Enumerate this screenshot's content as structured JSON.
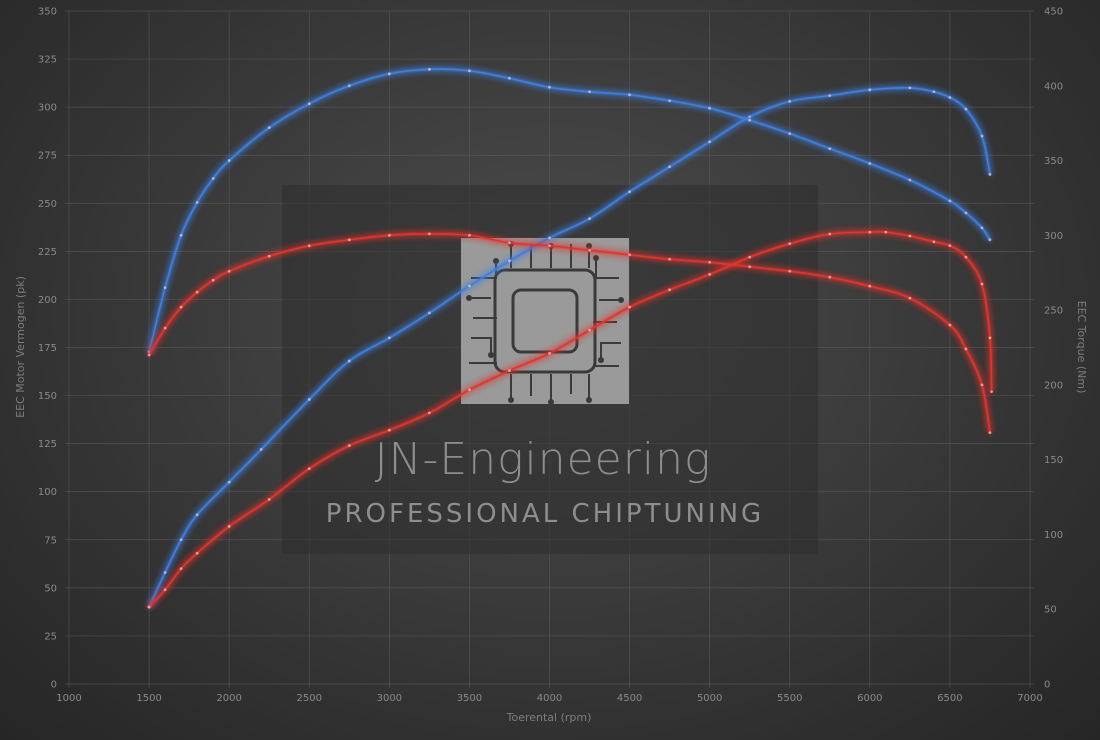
{
  "watermark": {
    "title": "JN-Engineering",
    "subtitle": "Professional chiptuning"
  },
  "chart_data": {
    "type": "line",
    "title": "",
    "xlabel": "Toerental (rpm)",
    "ylabel_left": "EEC Motor Vermogen (pk)",
    "ylabel_right": "EEC Torque (Nm)",
    "xlim": [
      1000,
      7000
    ],
    "xticks": [
      1000,
      1500,
      2000,
      2500,
      3000,
      3500,
      4000,
      4500,
      5000,
      5500,
      6000,
      6500,
      7000
    ],
    "ylim_left": [
      0,
      350
    ],
    "yticks_left": [
      0,
      25,
      50,
      75,
      100,
      125,
      150,
      175,
      200,
      225,
      250,
      275,
      300,
      325,
      350
    ],
    "ylim_right": [
      0,
      450
    ],
    "yticks_right": [
      0,
      50,
      100,
      150,
      200,
      250,
      300,
      350,
      400,
      450
    ],
    "grid": true,
    "series": [
      {
        "axis": "left",
        "color": "#3f7fe0",
        "points": [
          [
            1500,
            40
          ],
          [
            1600,
            58
          ],
          [
            1700,
            75
          ],
          [
            1800,
            88
          ],
          [
            2000,
            105
          ],
          [
            2200,
            122
          ],
          [
            2500,
            148
          ],
          [
            2750,
            168
          ],
          [
            3000,
            180
          ],
          [
            3250,
            193
          ],
          [
            3500,
            207
          ],
          [
            3750,
            220
          ],
          [
            4000,
            232
          ],
          [
            4250,
            242
          ],
          [
            4500,
            256
          ],
          [
            4750,
            269
          ],
          [
            5000,
            282
          ],
          [
            5250,
            295
          ],
          [
            5500,
            303
          ],
          [
            5750,
            306
          ],
          [
            6000,
            309
          ],
          [
            6250,
            310
          ],
          [
            6400,
            308
          ],
          [
            6500,
            305
          ],
          [
            6600,
            299
          ],
          [
            6700,
            285
          ],
          [
            6750,
            265
          ]
        ]
      },
      {
        "axis": "right",
        "color": "#3f7fe0",
        "points": [
          [
            1500,
            222
          ],
          [
            1600,
            265
          ],
          [
            1700,
            300
          ],
          [
            1800,
            322
          ],
          [
            1900,
            338
          ],
          [
            2000,
            350
          ],
          [
            2250,
            372
          ],
          [
            2500,
            388
          ],
          [
            2750,
            400
          ],
          [
            3000,
            408
          ],
          [
            3250,
            411
          ],
          [
            3500,
            410
          ],
          [
            3750,
            405
          ],
          [
            4000,
            399
          ],
          [
            4250,
            396
          ],
          [
            4500,
            394
          ],
          [
            4750,
            390
          ],
          [
            5000,
            385
          ],
          [
            5250,
            377
          ],
          [
            5500,
            368
          ],
          [
            5750,
            358
          ],
          [
            6000,
            348
          ],
          [
            6250,
            337
          ],
          [
            6500,
            323
          ],
          [
            6600,
            315
          ],
          [
            6700,
            305
          ],
          [
            6750,
            297
          ]
        ]
      },
      {
        "axis": "left",
        "color": "#e2342f",
        "points": [
          [
            1500,
            40
          ],
          [
            1600,
            49
          ],
          [
            1700,
            60
          ],
          [
            1800,
            68
          ],
          [
            2000,
            82
          ],
          [
            2250,
            96
          ],
          [
            2500,
            112
          ],
          [
            2750,
            124
          ],
          [
            3000,
            132
          ],
          [
            3250,
            141
          ],
          [
            3500,
            153
          ],
          [
            3750,
            163
          ],
          [
            4000,
            172
          ],
          [
            4250,
            184
          ],
          [
            4500,
            196
          ],
          [
            4750,
            205
          ],
          [
            5000,
            213
          ],
          [
            5250,
            222
          ],
          [
            5500,
            229
          ],
          [
            5750,
            234
          ],
          [
            6000,
            235
          ],
          [
            6100,
            235
          ],
          [
            6250,
            233
          ],
          [
            6400,
            230
          ],
          [
            6500,
            228
          ],
          [
            6600,
            222
          ],
          [
            6700,
            208
          ],
          [
            6750,
            180
          ],
          [
            6760,
            152
          ]
        ]
      },
      {
        "axis": "right",
        "color": "#e2342f",
        "points": [
          [
            1500,
            220
          ],
          [
            1600,
            238
          ],
          [
            1700,
            252
          ],
          [
            1800,
            262
          ],
          [
            1900,
            270
          ],
          [
            2000,
            276
          ],
          [
            2250,
            286
          ],
          [
            2500,
            293
          ],
          [
            2750,
            297
          ],
          [
            3000,
            300
          ],
          [
            3250,
            301
          ],
          [
            3500,
            300
          ],
          [
            3750,
            295
          ],
          [
            4000,
            293
          ],
          [
            4250,
            290
          ],
          [
            4500,
            287
          ],
          [
            4750,
            284
          ],
          [
            5000,
            282
          ],
          [
            5250,
            279
          ],
          [
            5500,
            276
          ],
          [
            5750,
            272
          ],
          [
            6000,
            266
          ],
          [
            6250,
            258
          ],
          [
            6500,
            240
          ],
          [
            6600,
            224
          ],
          [
            6700,
            200
          ],
          [
            6750,
            168
          ]
        ]
      }
    ]
  }
}
